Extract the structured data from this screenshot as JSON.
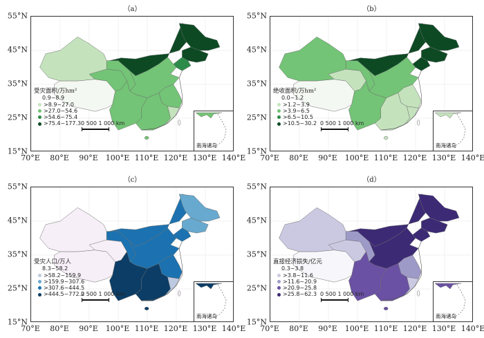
{
  "axes": {
    "y_ticks": [
      "55°N",
      "45°N",
      "35°N",
      "25°N",
      "15°N"
    ],
    "x_ticks": [
      "70°E",
      "80°E",
      "90°E",
      "100°E",
      "110°E",
      "120°E",
      "130°E",
      "140°E"
    ]
  },
  "scale_bar": "0  500 1 000 km",
  "inset_label": "南海诸岛",
  "panels": [
    {
      "label": "（a）",
      "legend_title": "受灾面积/万hm²",
      "classes": [
        "0.9~8.9",
        ">8.9~27.0",
        ">27.0~54.6",
        ">54.6~75.4",
        ">75.4~177.3"
      ],
      "colors": [
        "#f4f8f2",
        "#c4e3bd",
        "#73c476",
        "#2d8b49",
        "#0d4a24"
      ],
      "region_class": {
        "xinjiang": 1,
        "tibet": 0,
        "qinghai": 2,
        "gansu": 2,
        "inner_mongolia": 4,
        "heilongjiang": 4,
        "jilin": 4,
        "liaoning": 3,
        "central": 2,
        "east": 2,
        "south": 2,
        "southwest": 2,
        "coast": 1
      }
    },
    {
      "label": "（b）",
      "legend_title": "绝收面积/万hm²",
      "classes": [
        "0.0~1.2",
        ">1.2~3.9",
        ">3.9~6.5",
        ">6.5~10.5",
        ">10.5~30.2"
      ],
      "colors": [
        "#f4f8f2",
        "#c4e3bd",
        "#73c476",
        "#2d8b49",
        "#0d4a24"
      ],
      "region_class": {
        "xinjiang": 2,
        "tibet": 0,
        "qinghai": 1,
        "gansu": 2,
        "inner_mongolia": 4,
        "heilongjiang": 4,
        "jilin": 4,
        "liaoning": 4,
        "central": 2,
        "east": 1,
        "south": 1,
        "southwest": 2,
        "coast": 1
      }
    },
    {
      "label": "（c）",
      "legend_title": "受灾人口/万人",
      "classes": [
        "8.3~58.2",
        ">58.2~159.9",
        ">159.9~307.6",
        ">307.6~444.5",
        ">444.5~772.2"
      ],
      "colors": [
        "#f6eff7",
        "#bdc9e1",
        "#67a9cf",
        "#1c72b0",
        "#0b3d66"
      ],
      "region_class": {
        "xinjiang": 0,
        "tibet": 0,
        "qinghai": 0,
        "gansu": 3,
        "inner_mongolia": 3,
        "heilongjiang": 2,
        "jilin": 2,
        "liaoning": 3,
        "central": 3,
        "east": 3,
        "south": 4,
        "southwest": 4,
        "coast": 1
      }
    },
    {
      "label": "（d）",
      "legend_title": "直接经济损失/亿元",
      "classes": [
        "0.3~3.8",
        ">3.8~11.6",
        ">11.6~20.9",
        ">20.9~25.8",
        ">25.8~62.3"
      ],
      "colors": [
        "#f7f7fb",
        "#cbc9e2",
        "#9e9ac8",
        "#6a51a3",
        "#3c2a75"
      ],
      "region_class": {
        "xinjiang": 1,
        "tibet": 0,
        "qinghai": 1,
        "gansu": 2,
        "inner_mongolia": 4,
        "heilongjiang": 4,
        "jilin": 4,
        "liaoning": 4,
        "central": 4,
        "east": 2,
        "south": 3,
        "southwest": 3,
        "coast": 1
      }
    }
  ]
}
